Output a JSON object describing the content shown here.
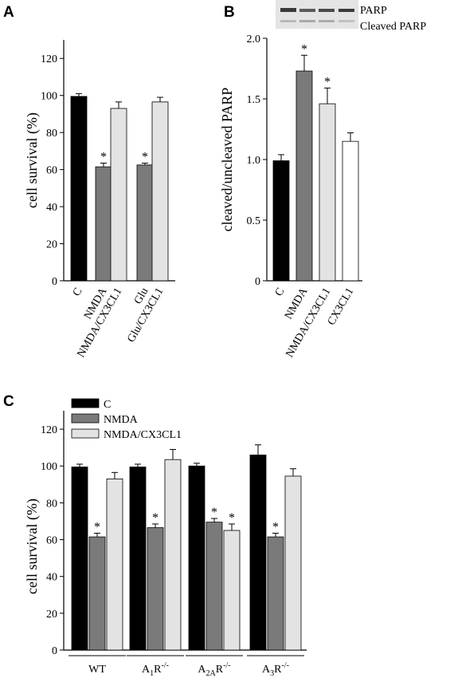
{
  "panels": {
    "A": {
      "letter": "A"
    },
    "B": {
      "letter": "B"
    },
    "C": {
      "letter": "C"
    }
  },
  "blot": {
    "label_top": "PARP",
    "label_bottom": "Cleaved PARP"
  },
  "colors": {
    "C": "#000000",
    "NMDA": "#7a7a7a",
    "NMDA/CX3CL1": "#e3e3e3",
    "CX3CL1": "#ffffff",
    "Glu": "#7a7a7a",
    "Glu/CX3CL1": "#e3e3e3"
  },
  "chart_data": [
    {
      "id": "A",
      "type": "bar",
      "ylabel": "cell survival (%)",
      "ylim": [
        0,
        130
      ],
      "yticks": [
        0,
        20,
        40,
        60,
        80,
        100,
        120
      ],
      "categories": [
        "C",
        "NMDA",
        "NMDA/CX3CL1",
        "Glu",
        "Glu/CX3CL1"
      ],
      "values": [
        99.5,
        61.5,
        93,
        62.5,
        96.5
      ],
      "errors": [
        1.5,
        2,
        3.5,
        1,
        2.5
      ],
      "significant": [
        false,
        true,
        false,
        true,
        false
      ],
      "fills": [
        "#000000",
        "#7a7a7a",
        "#e3e3e3",
        "#7a7a7a",
        "#e3e3e3"
      ],
      "grid": false
    },
    {
      "id": "B",
      "type": "bar",
      "ylabel": "cleaved/uncleaved PARP",
      "ylim": [
        0,
        2.0
      ],
      "yticks": [
        0,
        0.5,
        1.0,
        1.5,
        2.0
      ],
      "ytick_labels": [
        "0",
        "0.5",
        "1.0",
        "1.5",
        "2.0"
      ],
      "categories": [
        "C",
        "NMDA",
        "NMDA/CX3CL1",
        "CX3CL1"
      ],
      "values": [
        0.99,
        1.73,
        1.46,
        1.15
      ],
      "errors": [
        0.05,
        0.13,
        0.13,
        0.07
      ],
      "significant": [
        false,
        true,
        true,
        false
      ],
      "fills": [
        "#000000",
        "#7a7a7a",
        "#e3e3e3",
        "#ffffff"
      ],
      "grid": false
    },
    {
      "id": "C",
      "type": "bar",
      "ylabel": "cell survival (%)",
      "ylim": [
        0,
        130
      ],
      "yticks": [
        0,
        20,
        40,
        60,
        80,
        100,
        120
      ],
      "groups": [
        {
          "base": "WT",
          "sub": "",
          "sup": ""
        },
        {
          "base": "A",
          "sub": "1",
          "tail": "R",
          "sup": "-/-"
        },
        {
          "base": "A",
          "sub": "2A",
          "tail": "R",
          "sup": "-/-"
        },
        {
          "base": "A",
          "sub": "3",
          "tail": "R",
          "sup": "-/-"
        }
      ],
      "series": [
        {
          "name": "C",
          "color": "#000000",
          "values": [
            99.5,
            99.5,
            100,
            106
          ],
          "errors": [
            1.5,
            1.5,
            1.5,
            5.5
          ],
          "significant": [
            false,
            false,
            false,
            false
          ]
        },
        {
          "name": "NMDA",
          "color": "#7a7a7a",
          "values": [
            61.5,
            66.5,
            69.5,
            61.5
          ],
          "errors": [
            2,
            2,
            2,
            2
          ],
          "significant": [
            true,
            true,
            true,
            true
          ]
        },
        {
          "name": "NMDA/CX3CL1",
          "color": "#e3e3e3",
          "values": [
            93,
            103.5,
            65,
            94.5
          ],
          "errors": [
            3.5,
            5.5,
            3.5,
            4
          ],
          "significant": [
            false,
            false,
            true,
            false
          ]
        }
      ],
      "legend_position": "top-left",
      "grid": false
    }
  ]
}
